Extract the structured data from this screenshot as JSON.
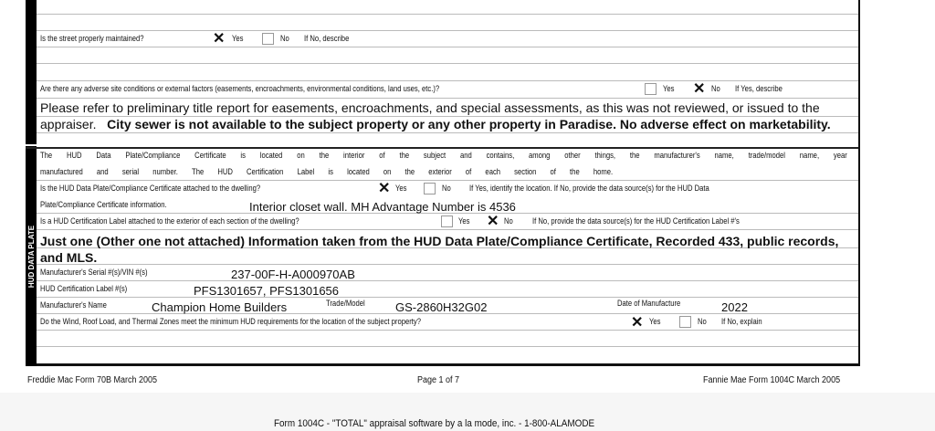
{
  "street": {
    "question": "Is the street properly maintained?",
    "yes": "Yes",
    "no": "No",
    "describe": "If No, describe",
    "yes_checked": true,
    "no_checked": false
  },
  "adverse": {
    "question": "Are there any adverse site conditions or external factors (easements, encroachments, environmental conditions, land uses, etc.)?",
    "yes": "Yes",
    "no": "No",
    "describe": "If Yes, describe",
    "yes_checked": false,
    "no_checked": true,
    "answer_line1": "Please refer to preliminary title report for easements, encroachments, and special assessments, as this was not reviewed, or issued to the",
    "answer_line2_normal": "appraiser.",
    "answer_line2_bold": "City sewer is not available to the subject property or any other property in Paradise.  No adverse effect on marketability."
  },
  "hud": {
    "section_label": "HUD DATA PLATE",
    "intro_line1": [
      "The",
      "HUD",
      "Data",
      "Plate/Compliance",
      "Certificate",
      "is",
      "located",
      "on",
      "the",
      "interior",
      "of",
      "the",
      "subject",
      "and",
      "contains,",
      "among",
      "other",
      "things,",
      "the",
      "manufacturer's",
      "name,",
      "trade/model",
      "name,",
      "year"
    ],
    "intro_line2": [
      "manufactured",
      "and",
      "serial",
      "number.",
      "The",
      "HUD",
      "Certification",
      "Label",
      "is",
      "located",
      "on",
      "the",
      "exterior",
      "of",
      "each",
      "section",
      "of",
      "the",
      "home."
    ],
    "plate_q": "Is the HUD Data Plate/Compliance Certificate attached to the dwelling?",
    "plate_q2": "Plate/Compliance Certificate information.",
    "plate_yes": "Yes",
    "plate_no": "No",
    "plate_yes_checked": true,
    "plate_no_checked": false,
    "plate_instr": "If Yes, identify the location. If No, provide the data source(s) for the HUD Data",
    "plate_answer": "Interior closet wall.  MH Advantage Number is 4536",
    "label_q": "Is a HUD Certification Label attached to the exterior of each section of the dwelling?",
    "label_yes": "Yes",
    "label_no": "No",
    "label_yes_checked": false,
    "label_no_checked": true,
    "label_instr": "If No, provide the data source(s) for the HUD Certification Label #'s",
    "label_answer1": "Just one (Other one not attached)  Information taken from the HUD Data Plate/Compliance Certificate, Recorded 433, public records,",
    "label_answer2": "and MLS.",
    "serial_label": "Manufacturer's Serial #(s)/VIN #(s)",
    "serial_value": "237-00F-H-A000970AB",
    "cert_label": "HUD Certification Label #(s)",
    "cert_value": "PFS1301657, PFS1301656",
    "mfr_label": "Manufacturer's Name",
    "mfr_value": "Champion Home Builders",
    "model_label": "Trade/Model",
    "model_value": "GS-2860H32G02",
    "date_label": "Date of Manufacture",
    "date_value": "2022",
    "zones_q": "Do the Wind, Roof Load, and Thermal Zones meet the minimum HUD requirements for the location of the subject property?",
    "zones_yes": "Yes",
    "zones_no": "No",
    "zones_explain": "If No, explain",
    "zones_yes_checked": true,
    "zones_no_checked": false
  },
  "footer": {
    "left": "Freddie Mac Form 70B March 2005",
    "center": "Page 1 of 7",
    "right": "Fannie Mae Form 1004C March 2005",
    "software": "Form 1004C - \"TOTAL\" appraisal software by a la mode, inc. - 1-800-ALAMODE"
  }
}
